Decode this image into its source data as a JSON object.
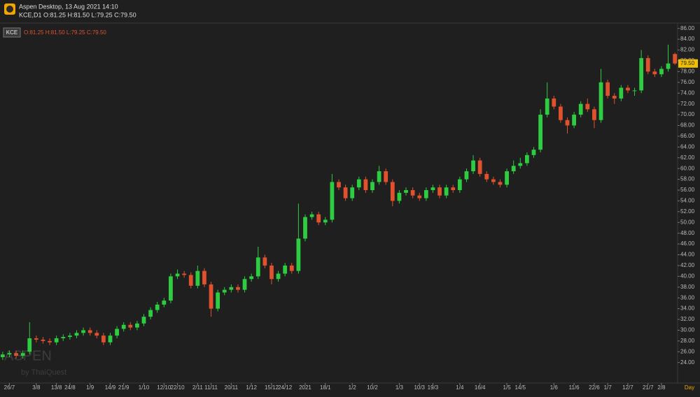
{
  "header": {
    "app_title": "Aspen Desktop, 13 Aug 2021 14:10",
    "quote_line": "KCE,D1 O:81.25 H:81.50 L:79.25 C:79.50"
  },
  "watermark": {
    "brand": "ASPEN",
    "by": "by ThaiQuest"
  },
  "chart_data": {
    "type": "candlestick",
    "legend": {
      "symbol": "KCE",
      "ohlc": "O:81.25 H:81.50 L:79.25 C:79.50"
    },
    "x_unit": "Day",
    "last_price": {
      "value": 79.5,
      "label": "79.50"
    },
    "up_color": "#2ecc40",
    "down_color": "#e0522e",
    "series": [
      {
        "name": "KCE",
        "open": [
          25,
          25.5,
          25.75,
          25.25,
          26,
          28.5,
          28.25,
          28,
          27.75,
          28.5,
          28.75,
          29,
          29.5,
          30,
          29.5,
          29,
          27.75,
          29,
          30.25,
          31,
          30.5,
          31.25,
          32.5,
          33.75,
          34.75,
          35.5,
          40,
          40.5,
          40.25,
          38.25,
          41,
          38.5,
          34,
          37,
          37.5,
          38,
          37.5,
          39.5,
          40,
          43.5,
          42,
          39.5,
          40.5,
          42,
          41,
          47,
          51,
          51.5,
          50,
          50.5,
          57.5,
          56.5,
          54.5,
          56.5,
          58,
          56,
          57.5,
          59.5,
          57.5,
          54,
          55.5,
          56,
          55,
          54.5,
          56,
          56.5,
          55,
          56.5,
          56,
          58,
          59.5,
          61.5,
          59,
          58,
          57.5,
          57,
          59.5,
          60.5,
          61,
          62.5,
          63.5,
          70,
          73,
          71.5,
          69,
          68,
          70,
          72,
          71,
          69,
          76,
          73.5,
          73,
          75,
          74.5,
          74.5,
          80.5,
          78,
          77.5,
          78.5,
          81.25
        ],
        "high": [
          26,
          26.25,
          26.25,
          26.25,
          31.5,
          29,
          28.75,
          28.5,
          29,
          29.25,
          29.5,
          30,
          30.5,
          30.5,
          30,
          29.5,
          29.5,
          30.75,
          31.5,
          31.5,
          31.75,
          33,
          34.25,
          35.25,
          36,
          40.5,
          41.25,
          41,
          40.75,
          42,
          41.5,
          39,
          37.5,
          38,
          38.5,
          38.5,
          40,
          40.5,
          45.5,
          44,
          42.5,
          41,
          42.5,
          42.5,
          53.5,
          51.5,
          52,
          52,
          51,
          59,
          58,
          57,
          57,
          58.5,
          58.5,
          58,
          60.5,
          60,
          58,
          56,
          56.5,
          56.5,
          55.5,
          56.5,
          57,
          57,
          57,
          57,
          58.5,
          60,
          62.5,
          62,
          59.5,
          58.5,
          58,
          60,
          61.5,
          62,
          63,
          64,
          71,
          76,
          73.5,
          72,
          69.5,
          70.5,
          72.5,
          73,
          71.5,
          78.5,
          76.5,
          74,
          75.5,
          75.5,
          75,
          82,
          81,
          78.5,
          79,
          83,
          81.5
        ],
        "low": [
          24.5,
          25,
          24.75,
          24.75,
          25.5,
          27.75,
          27.5,
          27.25,
          27.25,
          28,
          28.25,
          28.5,
          29,
          29,
          28.5,
          27.25,
          27.25,
          28.5,
          29.75,
          30,
          30,
          30.75,
          32,
          33.25,
          34.25,
          35,
          39.5,
          39.75,
          37.75,
          37.75,
          38,
          32.5,
          33.5,
          36.5,
          37,
          37,
          37,
          39,
          39.5,
          41.5,
          38.5,
          39,
          40,
          40.5,
          40.5,
          46.5,
          50.5,
          49.5,
          49.5,
          50,
          56,
          54,
          54,
          56,
          55.5,
          55.5,
          57,
          57,
          53,
          53.5,
          55,
          54.5,
          54,
          54,
          55.5,
          54.5,
          54.5,
          55.5,
          55.5,
          57.5,
          59,
          58.5,
          57.5,
          57,
          56.5,
          56.5,
          59,
          60,
          60.5,
          62,
          63,
          69.5,
          71,
          68.5,
          66.5,
          67.5,
          69.5,
          70.5,
          67.5,
          68.5,
          73,
          72,
          72.5,
          74,
          73.5,
          74,
          77.5,
          77,
          77,
          78,
          79.25
        ],
        "close": [
          25.5,
          25.75,
          25.25,
          25.75,
          28.5,
          28.25,
          28,
          27.75,
          28.5,
          28.75,
          29,
          29.5,
          30,
          29.5,
          29,
          27.75,
          29,
          30.25,
          31,
          30.5,
          31.25,
          32.5,
          33.75,
          34.75,
          35.5,
          40,
          40.5,
          40.25,
          38.25,
          41,
          38.5,
          34,
          37,
          37.5,
          38,
          37.5,
          39.5,
          40,
          43.5,
          42,
          39.5,
          40.5,
          42,
          41,
          47,
          51,
          51.5,
          50,
          50.5,
          57.5,
          56.5,
          54.5,
          56.5,
          58,
          56,
          57.5,
          59.5,
          57.5,
          54,
          55.5,
          56,
          55,
          54.5,
          56,
          56.5,
          55,
          56.5,
          56,
          58,
          59.5,
          61.5,
          59,
          58,
          57.5,
          57,
          59.5,
          60.5,
          61,
          62.5,
          63.5,
          70,
          73,
          71.5,
          69,
          68,
          70,
          72,
          71,
          69,
          76,
          73.5,
          73,
          75,
          74.5,
          74.5,
          80.5,
          78,
          77.5,
          78.5,
          79.5,
          79.5
        ]
      }
    ],
    "xlim": [
      -0.4,
      100.4
    ],
    "xticks": [
      {
        "value": 1,
        "label": "26/7"
      },
      {
        "value": 5,
        "label": "3/8"
      },
      {
        "value": 8,
        "label": "13/8"
      },
      {
        "value": 10,
        "label": "24/8"
      },
      {
        "value": 13,
        "label": "1/9"
      },
      {
        "value": 16,
        "label": "14/9"
      },
      {
        "value": 18,
        "label": "21/9"
      },
      {
        "value": 21,
        "label": "1/10"
      },
      {
        "value": 24,
        "label": "12/10"
      },
      {
        "value": 26,
        "label": "22/10"
      },
      {
        "value": 29,
        "label": "2/11"
      },
      {
        "value": 31,
        "label": "11/11"
      },
      {
        "value": 34,
        "label": "20/11"
      },
      {
        "value": 37,
        "label": "1/12"
      },
      {
        "value": 40,
        "label": "15/12"
      },
      {
        "value": 42,
        "label": "24/12"
      },
      {
        "value": 45,
        "label": "2021"
      },
      {
        "value": 48,
        "label": "18/1"
      },
      {
        "value": 52,
        "label": "1/2"
      },
      {
        "value": 55,
        "label": "10/2"
      },
      {
        "value": 59,
        "label": "1/3"
      },
      {
        "value": 62,
        "label": "10/3"
      },
      {
        "value": 64,
        "label": "19/3"
      },
      {
        "value": 68,
        "label": "1/4"
      },
      {
        "value": 71,
        "label": "16/4"
      },
      {
        "value": 75,
        "label": "1/5"
      },
      {
        "value": 77,
        "label": "14/5"
      },
      {
        "value": 82,
        "label": "1/6"
      },
      {
        "value": 85,
        "label": "11/6"
      },
      {
        "value": 88,
        "label": "22/6"
      },
      {
        "value": 90,
        "label": "1/7"
      },
      {
        "value": 93,
        "label": "12/7"
      },
      {
        "value": 96,
        "label": "21/7"
      },
      {
        "value": 98,
        "label": "2/8"
      }
    ],
    "ylim": [
      20.2,
      87
    ],
    "yticks": [
      {
        "value": 24,
        "label": "24.00"
      },
      {
        "value": 26,
        "label": "26.00"
      },
      {
        "value": 28,
        "label": "28.00"
      },
      {
        "value": 30,
        "label": "30.00"
      },
      {
        "value": 32,
        "label": "32.00"
      },
      {
        "value": 34,
        "label": "34.00"
      },
      {
        "value": 36,
        "label": "36.00"
      },
      {
        "value": 38,
        "label": "38.00"
      },
      {
        "value": 40,
        "label": "40.00"
      },
      {
        "value": 42,
        "label": "42.00"
      },
      {
        "value": 44,
        "label": "44.00"
      },
      {
        "value": 46,
        "label": "46.00"
      },
      {
        "value": 48,
        "label": "48.00"
      },
      {
        "value": 50,
        "label": "50.00"
      },
      {
        "value": 52,
        "label": "52.00"
      },
      {
        "value": 54,
        "label": "54.00"
      },
      {
        "value": 56,
        "label": "56.00"
      },
      {
        "value": 58,
        "label": "58.00"
      },
      {
        "value": 60,
        "label": "60.00"
      },
      {
        "value": 62,
        "label": "62.00"
      },
      {
        "value": 64,
        "label": "64.00"
      },
      {
        "value": 66,
        "label": "66.00"
      },
      {
        "value": 68,
        "label": "68.00"
      },
      {
        "value": 70,
        "label": "70.00"
      },
      {
        "value": 72,
        "label": "72.00"
      },
      {
        "value": 74,
        "label": "74.00"
      },
      {
        "value": 76,
        "label": "76.00"
      },
      {
        "value": 78,
        "label": "78.00"
      },
      {
        "value": 80,
        "label": "80.00"
      },
      {
        "value": 82,
        "label": "82.00"
      },
      {
        "value": 84,
        "label": "84.00"
      },
      {
        "value": 86,
        "label": "86.00"
      }
    ],
    "grid": false
  }
}
